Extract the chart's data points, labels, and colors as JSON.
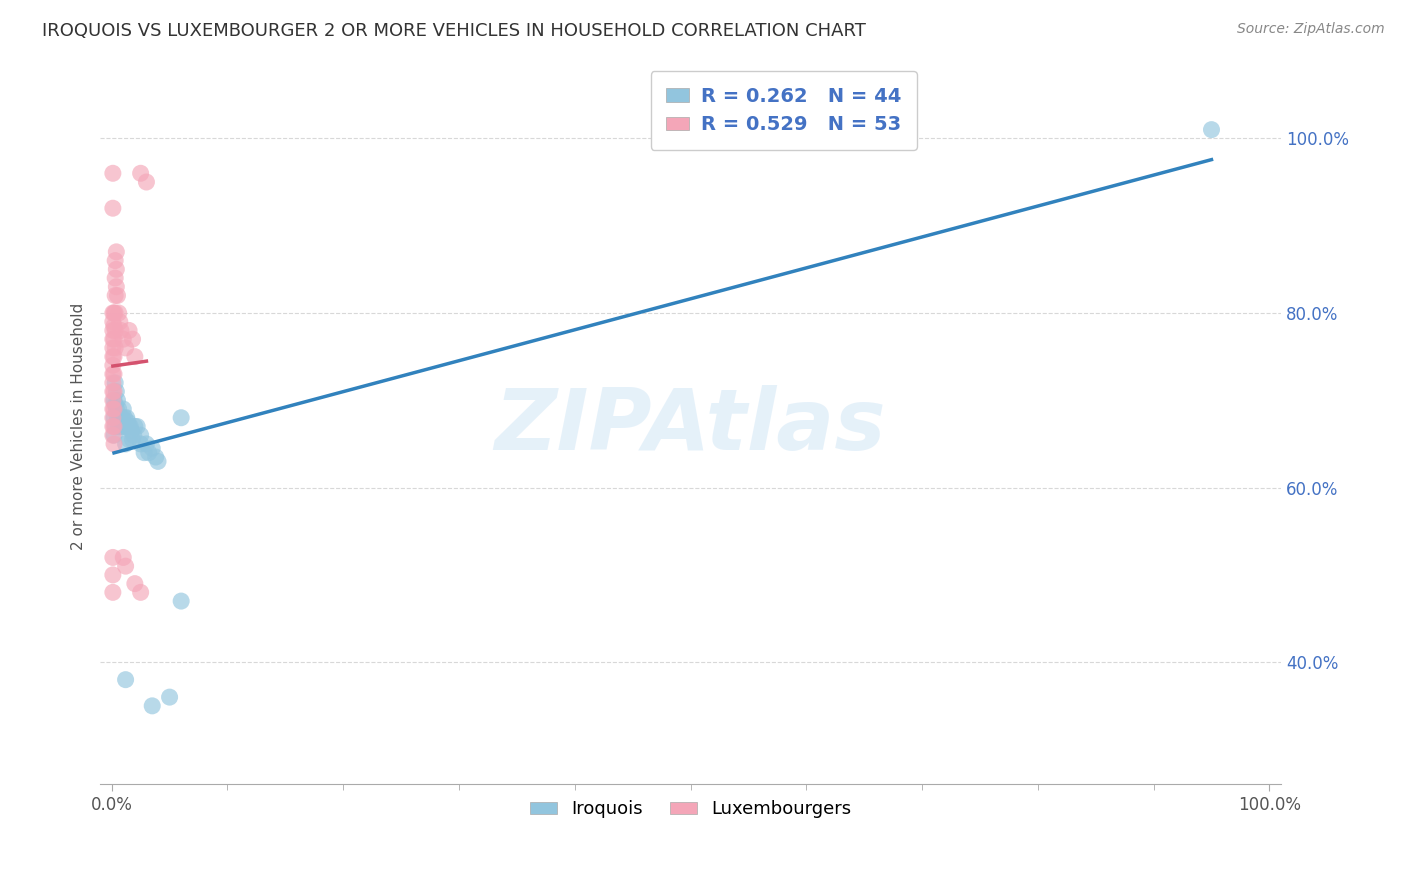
{
  "title": "IROQUOIS VS LUXEMBOURGER 2 OR MORE VEHICLES IN HOUSEHOLD CORRELATION CHART",
  "source": "Source: ZipAtlas.com",
  "ylabel": "2 or more Vehicles in Household",
  "iroquois_color": "#92c5de",
  "luxembourger_color": "#f4a6b8",
  "iroquois_line_color": "#3182bd",
  "luxembourger_line_color": "#d4526e",
  "watermark": "ZIPAtlas",
  "R_iroquois": 0.262,
  "N_iroquois": 44,
  "R_luxembourger": 0.529,
  "N_luxembourger": 53,
  "iroquois_scatter": [
    [
      0.002,
      0.7
    ],
    [
      0.002,
      0.68
    ],
    [
      0.002,
      0.66
    ],
    [
      0.003,
      0.72
    ],
    [
      0.003,
      0.695
    ],
    [
      0.003,
      0.67
    ],
    [
      0.004,
      0.71
    ],
    [
      0.004,
      0.69
    ],
    [
      0.005,
      0.7
    ],
    [
      0.005,
      0.68
    ],
    [
      0.006,
      0.69
    ],
    [
      0.006,
      0.67
    ],
    [
      0.007,
      0.68
    ],
    [
      0.008,
      0.67
    ],
    [
      0.009,
      0.68
    ],
    [
      0.01,
      0.69
    ],
    [
      0.01,
      0.67
    ],
    [
      0.011,
      0.68
    ],
    [
      0.012,
      0.67
    ],
    [
      0.012,
      0.65
    ],
    [
      0.013,
      0.68
    ],
    [
      0.014,
      0.675
    ],
    [
      0.015,
      0.67
    ],
    [
      0.015,
      0.655
    ],
    [
      0.016,
      0.67
    ],
    [
      0.017,
      0.665
    ],
    [
      0.018,
      0.655
    ],
    [
      0.019,
      0.66
    ],
    [
      0.02,
      0.67
    ],
    [
      0.022,
      0.67
    ],
    [
      0.025,
      0.66
    ],
    [
      0.025,
      0.65
    ],
    [
      0.028,
      0.64
    ],
    [
      0.03,
      0.65
    ],
    [
      0.032,
      0.64
    ],
    [
      0.035,
      0.645
    ],
    [
      0.038,
      0.635
    ],
    [
      0.04,
      0.63
    ],
    [
      0.06,
      0.68
    ],
    [
      0.012,
      0.38
    ],
    [
      0.035,
      0.35
    ],
    [
      0.05,
      0.36
    ],
    [
      0.06,
      0.47
    ],
    [
      0.95,
      1.01
    ]
  ],
  "luxembourger_scatter": [
    [
      0.001,
      0.96
    ],
    [
      0.001,
      0.92
    ],
    [
      0.001,
      0.8
    ],
    [
      0.001,
      0.79
    ],
    [
      0.001,
      0.78
    ],
    [
      0.001,
      0.77
    ],
    [
      0.001,
      0.76
    ],
    [
      0.001,
      0.75
    ],
    [
      0.001,
      0.74
    ],
    [
      0.001,
      0.73
    ],
    [
      0.001,
      0.72
    ],
    [
      0.001,
      0.71
    ],
    [
      0.001,
      0.7
    ],
    [
      0.001,
      0.69
    ],
    [
      0.001,
      0.68
    ],
    [
      0.001,
      0.67
    ],
    [
      0.001,
      0.66
    ],
    [
      0.001,
      0.52
    ],
    [
      0.001,
      0.5
    ],
    [
      0.001,
      0.48
    ],
    [
      0.002,
      0.8
    ],
    [
      0.002,
      0.785
    ],
    [
      0.002,
      0.77
    ],
    [
      0.002,
      0.75
    ],
    [
      0.002,
      0.73
    ],
    [
      0.002,
      0.71
    ],
    [
      0.002,
      0.69
    ],
    [
      0.002,
      0.67
    ],
    [
      0.002,
      0.65
    ],
    [
      0.003,
      0.86
    ],
    [
      0.003,
      0.84
    ],
    [
      0.003,
      0.82
    ],
    [
      0.003,
      0.8
    ],
    [
      0.003,
      0.78
    ],
    [
      0.003,
      0.76
    ],
    [
      0.004,
      0.87
    ],
    [
      0.004,
      0.85
    ],
    [
      0.004,
      0.83
    ],
    [
      0.005,
      0.82
    ],
    [
      0.006,
      0.8
    ],
    [
      0.007,
      0.79
    ],
    [
      0.008,
      0.78
    ],
    [
      0.01,
      0.77
    ],
    [
      0.012,
      0.76
    ],
    [
      0.015,
      0.78
    ],
    [
      0.018,
      0.77
    ],
    [
      0.02,
      0.75
    ],
    [
      0.01,
      0.52
    ],
    [
      0.012,
      0.51
    ],
    [
      0.02,
      0.49
    ],
    [
      0.025,
      0.48
    ],
    [
      0.025,
      0.96
    ],
    [
      0.03,
      0.95
    ]
  ],
  "xlim": [
    0.0,
    1.0
  ],
  "ylim": [
    0.26,
    1.08
  ],
  "figwidth": 14.06,
  "figheight": 8.92,
  "dpi": 100
}
